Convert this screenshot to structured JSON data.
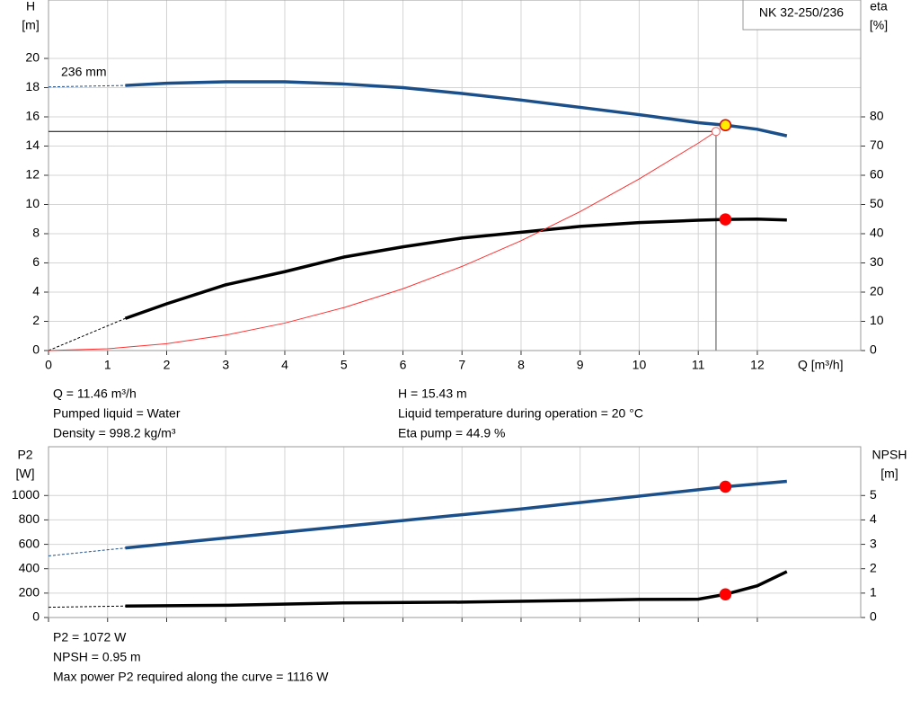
{
  "chart_data": [
    {
      "type": "line",
      "pump_label": "NK 32-250/236",
      "ylabel": "H",
      "yunit": "[m]",
      "y2label": "eta",
      "y2unit": "[%]",
      "xlabel": "Q [m³/h]",
      "xlim": [
        0,
        13.75
      ],
      "ylim": [
        0,
        24
      ],
      "y2lim": [
        0,
        120
      ],
      "xticks": [
        0,
        1,
        2,
        3,
        4,
        5,
        6,
        7,
        8,
        9,
        10,
        11,
        12
      ],
      "yticks": [
        0,
        2,
        4,
        6,
        8,
        10,
        12,
        14,
        16,
        18,
        20
      ],
      "y2ticks": [
        0,
        10,
        20,
        30,
        40,
        50,
        60,
        70,
        80
      ],
      "show_xtick_labels": true,
      "grid": true,
      "series": [
        {
          "label": "236 mm",
          "color": "#1a4f8a",
          "width": 3.5,
          "dash_x_max": 1.3,
          "axis": "y",
          "x": [
            0,
            1.3,
            2,
            3,
            4,
            5,
            6,
            7,
            8,
            9,
            10,
            11,
            11.46,
            12,
            12.5
          ],
          "values": [
            18.05,
            18.15,
            18.3,
            18.4,
            18.4,
            18.25,
            18.0,
            17.6,
            17.15,
            16.65,
            16.15,
            15.6,
            15.43,
            15.15,
            14.7
          ]
        },
        {
          "color": "#000000",
          "width": 3.5,
          "dash_x_max": 1.3,
          "axis": "y2",
          "x": [
            0,
            1.3,
            2,
            3,
            4,
            5,
            6,
            7,
            8,
            9,
            10,
            11,
            11.46,
            12,
            12.5
          ],
          "values": [
            0,
            11,
            16,
            22.5,
            27,
            32,
            35.5,
            38.5,
            40.5,
            42.5,
            43.8,
            44.6,
            44.9,
            45,
            44.7
          ]
        },
        {
          "color": "#ff3030",
          "width": 1,
          "axis": "y",
          "x": [
            0,
            1,
            2,
            3,
            4,
            5,
            6,
            7,
            8,
            9,
            10,
            11,
            11.3
          ],
          "values": [
            0,
            0.12,
            0.47,
            1.06,
            1.88,
            2.94,
            4.23,
            5.76,
            7.52,
            9.51,
            11.75,
            14.2,
            15
          ]
        }
      ],
      "markers": [
        {
          "x": 11.46,
          "y": 15.43,
          "axis": "y",
          "color": "#ffee00"
        },
        {
          "x": 11.46,
          "y": 44.9,
          "axis": "y2",
          "color": "#ff0000"
        }
      ],
      "set_point": {
        "x": 11.3,
        "y": 15
      },
      "notes_left": [
        "Q = 11.46 m³/h",
        "Pumped liquid = Water",
        "Density = 998.2 kg/m³"
      ],
      "notes_right": [
        "H = 15.43 m",
        "Liquid temperature during operation = 20 °C",
        "Eta pump = 44.9 %"
      ]
    },
    {
      "type": "line",
      "ylabel": "P2",
      "yunit": "[W]",
      "y2label": "NPSH",
      "y2unit": "[m]",
      "xlim": [
        0,
        13.75
      ],
      "ylim": [
        0,
        1400
      ],
      "y2lim": [
        0,
        7
      ],
      "xticks": [
        0,
        1,
        2,
        3,
        4,
        5,
        6,
        7,
        8,
        9,
        10,
        11,
        12
      ],
      "yticks": [
        0,
        200,
        400,
        600,
        800,
        1000
      ],
      "y2ticks": [
        0,
        1,
        2,
        3,
        4,
        5
      ],
      "show_xtick_labels": false,
      "grid": true,
      "series": [
        {
          "color": "#1a4f8a",
          "width": 3.5,
          "dash_x_max": 1.3,
          "axis": "y",
          "x": [
            0,
            1.3,
            4,
            8,
            11.46,
            12.5
          ],
          "values": [
            505,
            570,
            700,
            890,
            1072,
            1116
          ]
        },
        {
          "color": "#000000",
          "width": 3.5,
          "dash_x_max": 1.3,
          "axis": "y2",
          "x": [
            0,
            1.3,
            3,
            5,
            7,
            9,
            10,
            11,
            11.46,
            12,
            12.5
          ],
          "values": [
            0.42,
            0.47,
            0.5,
            0.6,
            0.63,
            0.7,
            0.74,
            0.75,
            0.95,
            1.3,
            1.88
          ]
        }
      ],
      "markers": [
        {
          "x": 11.46,
          "y": 1072,
          "axis": "y",
          "color": "#ff0000"
        },
        {
          "x": 11.46,
          "y": 0.95,
          "axis": "y2",
          "color": "#ff0000"
        }
      ],
      "notes_left": [
        "P2 = 1072 W",
        "NPSH = 0.95 m",
        "Max power P2 required along the curve = 1116 W"
      ]
    }
  ]
}
